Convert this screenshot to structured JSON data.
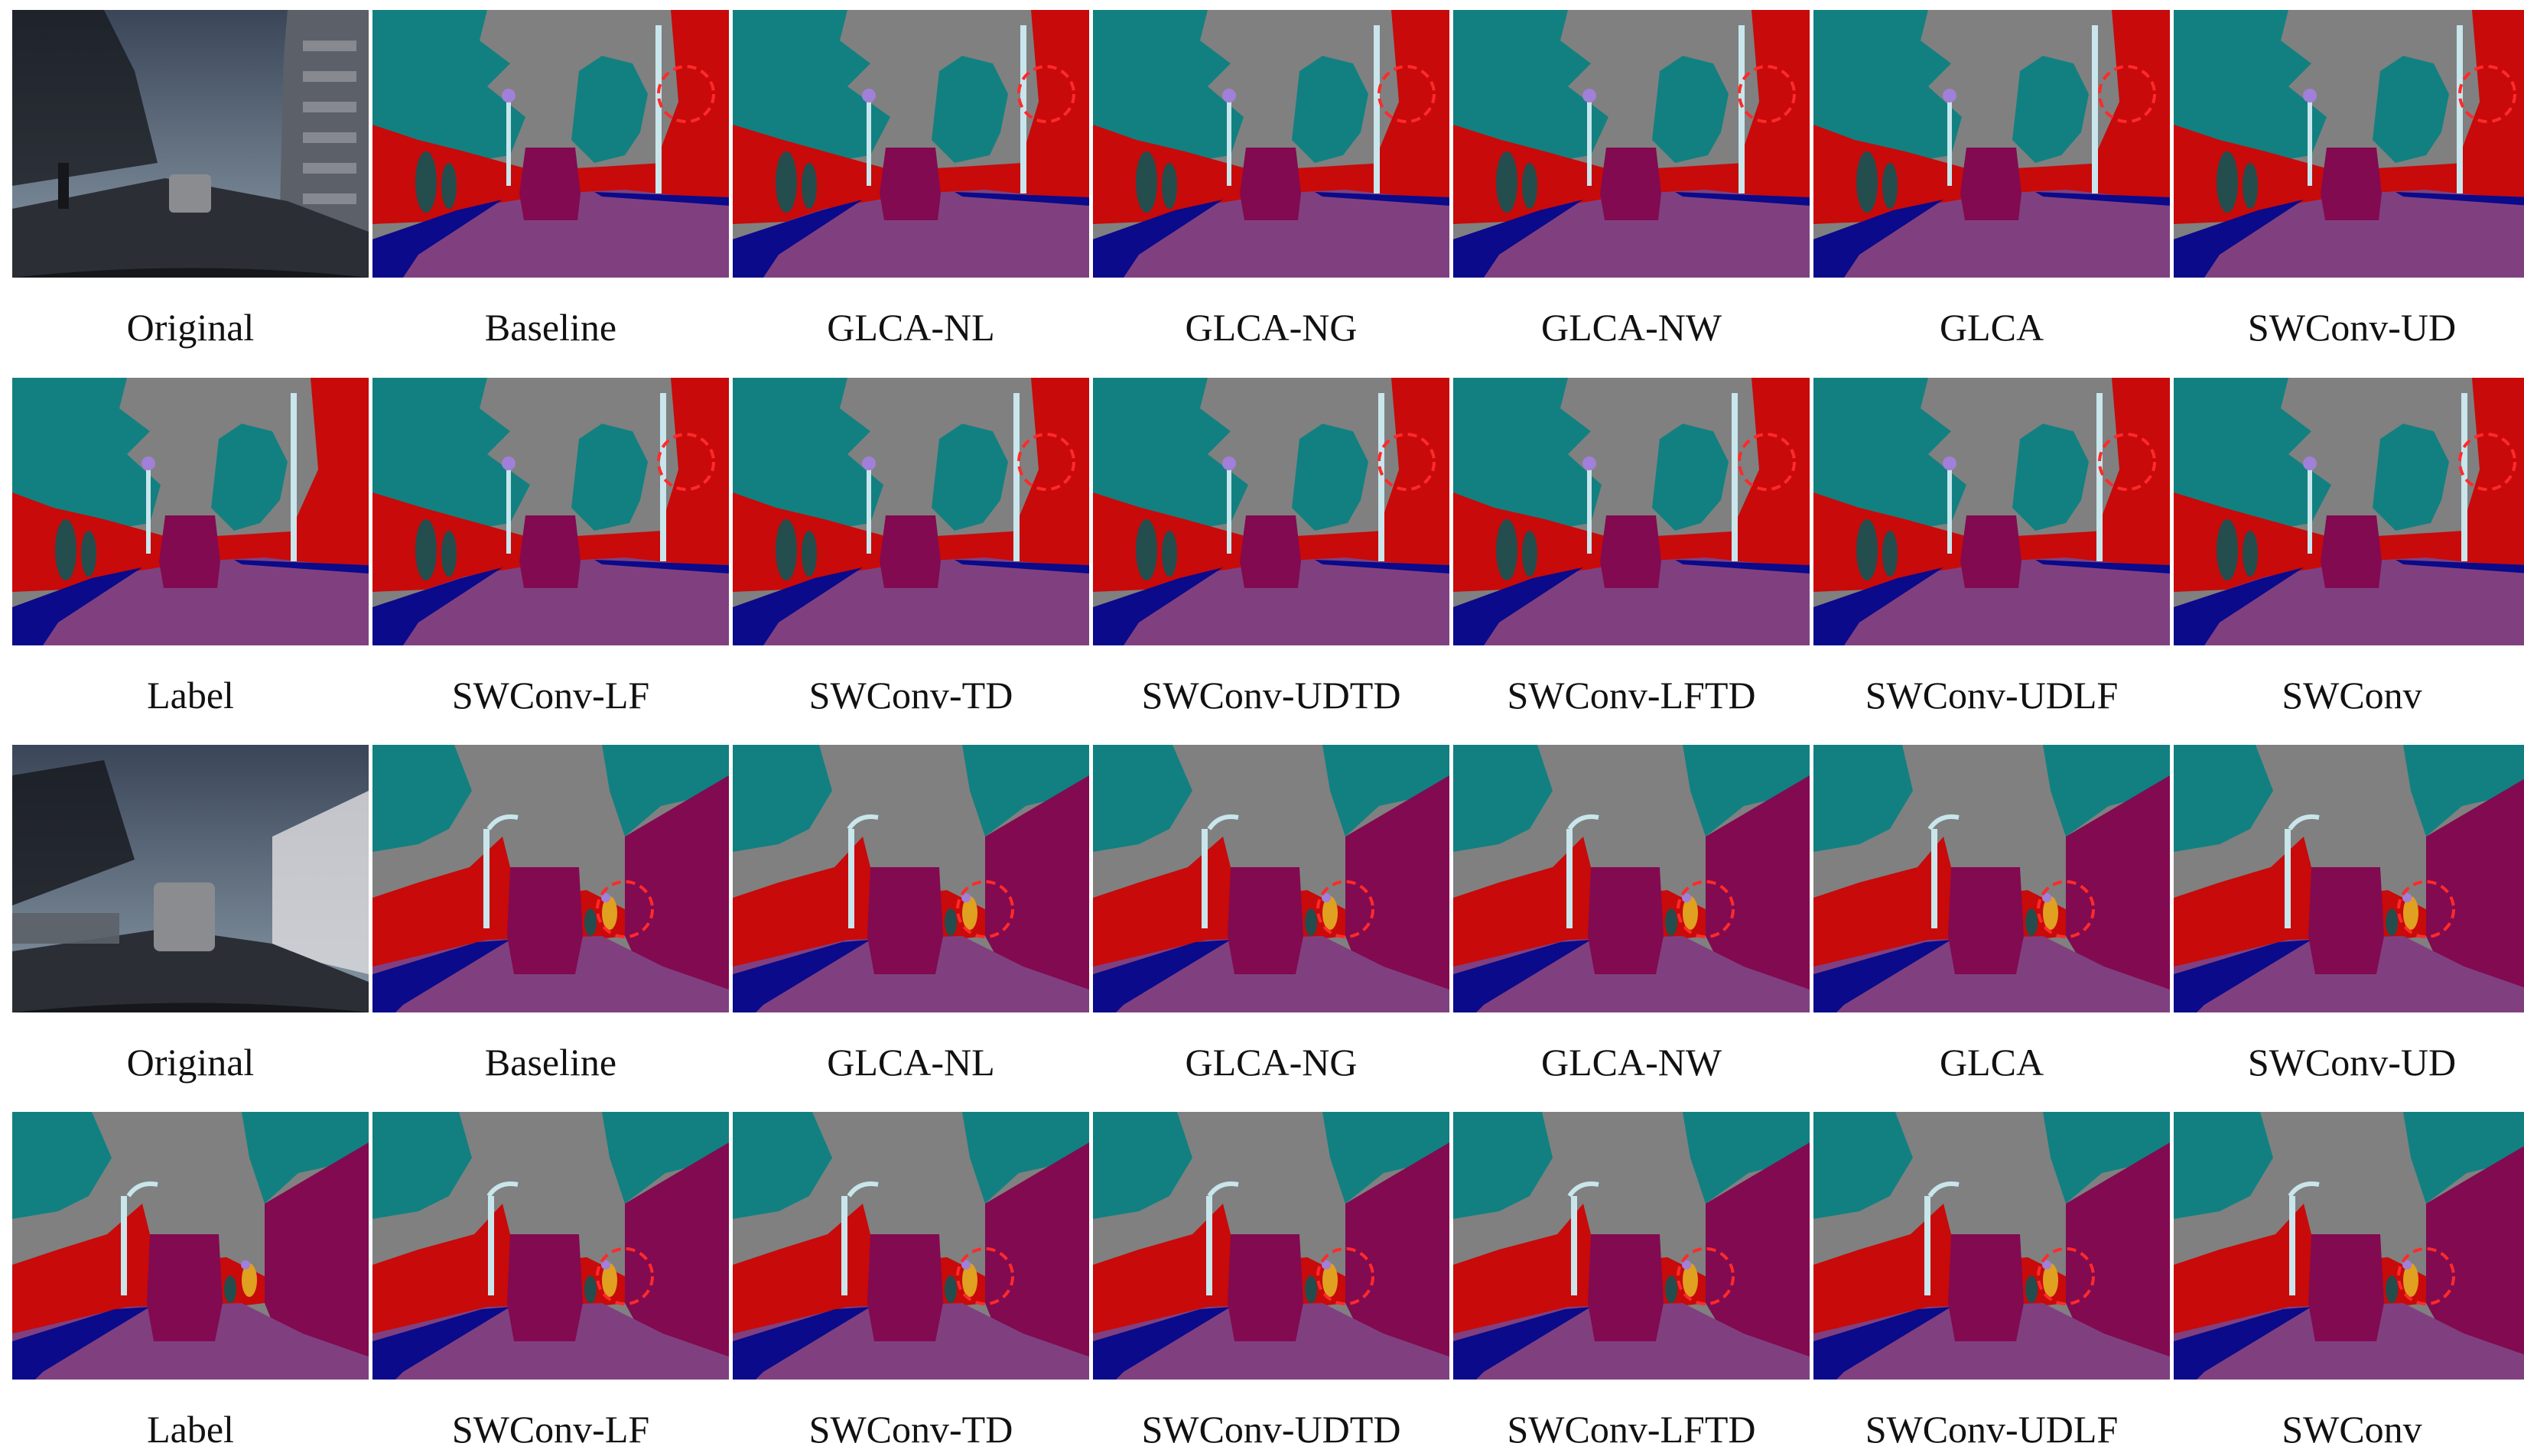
{
  "figure": {
    "rows": [
      {
        "scene": "a",
        "captions": [
          "Original",
          "Baseline",
          "GLCA-NL",
          "GLCA-NG",
          "GLCA-NW",
          "GLCA",
          "SWConv-UD"
        ]
      },
      {
        "scene": "a",
        "captions": [
          "Label",
          "SWConv-LF",
          "SWConv-TD",
          "SWConv-UDTD",
          "SWConv-LFTD",
          "SWConv-UDLF",
          "SWConv"
        ]
      },
      {
        "scene": "b",
        "captions": [
          "Original",
          "Baseline",
          "GLCA-NL",
          "GLCA-NG",
          "GLCA-NW",
          "GLCA",
          "SWConv-UD"
        ]
      },
      {
        "scene": "b",
        "captions": [
          "Label",
          "SWConv-LF",
          "SWConv-TD",
          "SWConv-UDTD",
          "SWConv-LFTD",
          "SWConv-UDLF",
          "SWConv"
        ]
      }
    ],
    "class_colors": {
      "sky": "#808080",
      "tree": "#128080",
      "building": "#c80a0a",
      "road": "#804080",
      "sidewalk": "#0a0a8a",
      "car": "#820a50",
      "pole": "#c8e6ec",
      "pedestrian": "#244d4d",
      "sign": "#a080d8",
      "cyclist": "#e0a020",
      "highlight": "#ff2a2a"
    },
    "photo_colors": {
      "sky_top": "#3a4658",
      "sky_bottom": "#8a9aa8",
      "ground": "#2b2f35",
      "dark": "#15171b",
      "building": "#5c6068",
      "car": "#8a8c90",
      "light": "#d8d8dc"
    }
  }
}
